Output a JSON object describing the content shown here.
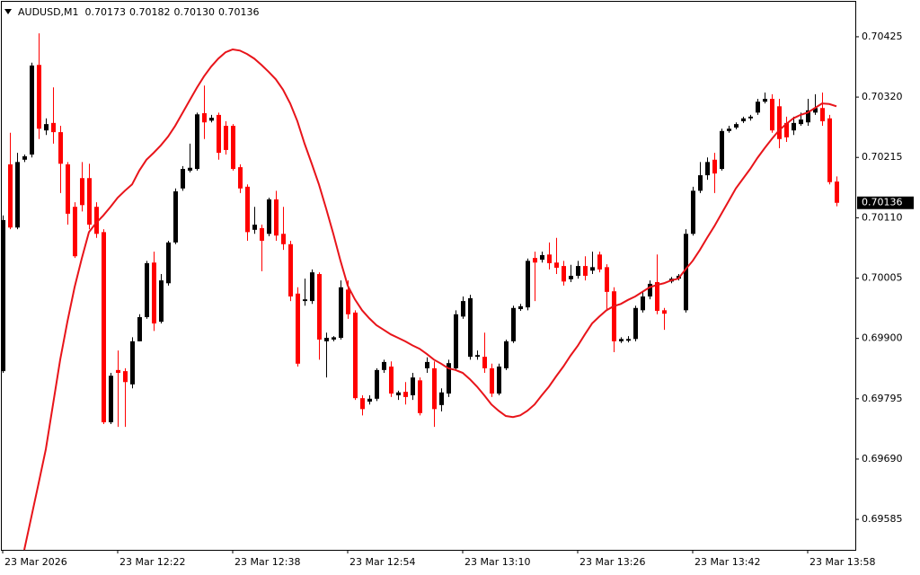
{
  "chart_data": {
    "type": "candlestick",
    "title": "AUDUSD,M1",
    "header_values": [
      "0.70173",
      "0.70182",
      "0.70130",
      "0.70136"
    ],
    "up_color": "#000000",
    "down_color": "#ff0000",
    "ylim": [
      0.69532,
      0.70489
    ],
    "yticks": [
      0.70425,
      {
        "value": 0.7032,
        "label": "0.70320"
      },
      0.70215,
      {
        "value": 0.7011,
        "label": "0.70110"
      },
      0.70005,
      {
        "value": 0.699,
        "label": "0.69900"
      },
      0.69795,
      {
        "value": 0.6969,
        "label": "0.69690"
      },
      0.69585
    ],
    "categories": [
      "23 Mar 2026",
      null,
      null,
      null,
      null,
      null,
      null,
      null,
      null,
      null,
      null,
      null,
      null,
      null,
      null,
      null,
      "23 Mar 12:22",
      null,
      null,
      null,
      null,
      null,
      null,
      null,
      null,
      null,
      null,
      null,
      null,
      null,
      null,
      null,
      "23 Mar 12:38",
      null,
      null,
      null,
      null,
      null,
      null,
      null,
      null,
      null,
      null,
      null,
      null,
      null,
      null,
      null,
      "23 Mar 12:54",
      null,
      null,
      null,
      null,
      null,
      null,
      null,
      null,
      null,
      null,
      null,
      null,
      null,
      null,
      null,
      "23 Mar 13:10",
      null,
      null,
      null,
      null,
      null,
      null,
      null,
      null,
      null,
      null,
      null,
      null,
      null,
      null,
      null,
      "23 Mar 13:26",
      null,
      null,
      null,
      null,
      null,
      null,
      null,
      null,
      null,
      null,
      null,
      null,
      null,
      null,
      null,
      "23 Mar 13:42",
      null,
      null,
      null,
      null,
      null,
      null,
      null,
      null,
      null,
      null,
      null,
      null,
      null,
      null,
      null,
      "23 Mar 13:58",
      null,
      null,
      null,
      null
    ],
    "ohlc": [
      [
        0.69843,
        0.70114,
        0.6984,
        0.70106
      ],
      [
        0.70203,
        0.70258,
        0.7009,
        0.70093
      ],
      [
        0.70093,
        0.70223,
        0.7009,
        0.70207
      ],
      [
        0.70211,
        0.7022,
        0.70207,
        0.70217
      ],
      [
        0.7022,
        0.7038,
        0.70215,
        0.70375
      ],
      [
        0.70376,
        0.70431,
        0.70247,
        0.70265
      ],
      [
        0.70262,
        0.70283,
        0.70254,
        0.70273
      ],
      [
        0.70275,
        0.70337,
        0.70239,
        0.70259
      ],
      [
        0.70259,
        0.7027,
        0.70153,
        0.70204
      ],
      [
        0.70203,
        0.70207,
        0.70098,
        0.70117
      ],
      [
        0.70129,
        0.70137,
        0.7004,
        0.70043
      ],
      [
        0.70179,
        0.70207,
        0.70121,
        0.70132
      ],
      [
        0.70179,
        0.70204,
        0.7009,
        0.70098
      ],
      [
        0.70129,
        0.70137,
        0.70075,
        0.70082
      ],
      [
        0.70085,
        0.7009,
        0.69751,
        0.69754
      ],
      [
        0.69754,
        0.6984,
        0.69751,
        0.69835
      ],
      [
        0.69845,
        0.69879,
        0.69746,
        0.6984
      ],
      [
        0.69843,
        0.69848,
        0.69746,
        0.69824
      ],
      [
        0.6982,
        0.69902,
        0.69813,
        0.69895
      ],
      [
        0.69895,
        0.69942,
        0.69895,
        0.69937
      ],
      [
        0.69937,
        0.70035,
        0.69934,
        0.70031
      ],
      [
        0.70032,
        0.70051,
        0.69913,
        0.69926
      ],
      [
        0.69929,
        0.70012,
        0.69926,
        0.70001
      ],
      [
        0.69996,
        0.7007,
        0.69992,
        0.70067
      ],
      [
        0.70067,
        0.70161,
        0.70064,
        0.70156
      ],
      [
        0.70161,
        0.702,
        0.70157,
        0.70195
      ],
      [
        0.70192,
        0.70239,
        0.70189,
        0.70197
      ],
      [
        0.70195,
        0.70293,
        0.70192,
        0.7029
      ],
      [
        0.70292,
        0.7034,
        0.70247,
        0.70276
      ],
      [
        0.70279,
        0.70289,
        0.70276,
        0.70284
      ],
      [
        0.70289,
        0.70293,
        0.70211,
        0.70223
      ],
      [
        0.7027,
        0.70278,
        0.7022,
        0.70228
      ],
      [
        0.7027,
        0.70273,
        0.70192,
        0.70195
      ],
      [
        0.70198,
        0.70203,
        0.70153,
        0.70161
      ],
      [
        0.70164,
        0.70168,
        0.7007,
        0.70085
      ],
      [
        0.70089,
        0.70129,
        0.70082,
        0.70098
      ],
      [
        0.70092,
        0.70098,
        0.70017,
        0.7007
      ],
      [
        0.70082,
        0.70145,
        0.70078,
        0.70142
      ],
      [
        0.70142,
        0.70157,
        0.7007,
        0.70079
      ],
      [
        0.70082,
        0.70129,
        0.70054,
        0.70064
      ],
      [
        0.70064,
        0.7007,
        0.69965,
        0.69973
      ],
      [
        0.69978,
        0.69989,
        0.69851,
        0.69856
      ],
      [
        0.69965,
        0.70004,
        0.69957,
        0.69968
      ],
      [
        0.69965,
        0.7002,
        0.6996,
        0.70015
      ],
      [
        0.70012,
        0.70015,
        0.69863,
        0.69898
      ],
      [
        0.69895,
        0.6991,
        0.69832,
        0.69901
      ],
      [
        0.69898,
        0.69904,
        0.69895,
        0.69902
      ],
      [
        0.69901,
        0.70001,
        0.69898,
        0.69989
      ],
      [
        0.69985,
        0.70001,
        0.69934,
        0.69942
      ],
      [
        0.69945,
        0.69949,
        0.69793,
        0.69796
      ],
      [
        0.69796,
        0.69801,
        0.69766,
        0.69777
      ],
      [
        0.6979,
        0.69801,
        0.69785,
        0.69795
      ],
      [
        0.69795,
        0.69848,
        0.69791,
        0.69845
      ],
      [
        0.69845,
        0.69863,
        0.6984,
        0.69859
      ],
      [
        0.69851,
        0.6986,
        0.69798,
        0.69804
      ],
      [
        0.69801,
        0.69809,
        0.69793,
        0.69806
      ],
      [
        0.69807,
        0.69824,
        0.69785,
        0.69798
      ],
      [
        0.69801,
        0.6984,
        0.69793,
        0.69832
      ],
      [
        0.69827,
        0.69832,
        0.69766,
        0.6977
      ],
      [
        0.69848,
        0.69867,
        0.6984,
        0.69859
      ],
      [
        0.69848,
        0.6986,
        0.69746,
        0.69777
      ],
      [
        0.69784,
        0.69813,
        0.69773,
        0.69806
      ],
      [
        0.69804,
        0.69863,
        0.69798,
        0.69857
      ],
      [
        0.69848,
        0.69949,
        0.69845,
        0.69942
      ],
      [
        0.69938,
        0.69973,
        0.69934,
        0.69965
      ],
      [
        0.69868,
        0.69976,
        0.69863,
        0.6997
      ],
      [
        0.69868,
        0.69879,
        0.69863,
        0.69871
      ],
      [
        0.69868,
        0.6991,
        0.6984,
        0.69848
      ],
      [
        0.69848,
        0.69856,
        0.69798,
        0.69804
      ],
      [
        0.69804,
        0.69856,
        0.69801,
        0.69851
      ],
      [
        0.69848,
        0.69898,
        0.69845,
        0.69895
      ],
      [
        0.69895,
        0.69957,
        0.69892,
        0.69953
      ],
      [
        0.69951,
        0.6996,
        0.69948,
        0.69956
      ],
      [
        0.69954,
        0.70039,
        0.69949,
        0.70035
      ],
      [
        0.7004,
        0.70051,
        0.69965,
        0.70032
      ],
      [
        0.70037,
        0.70051,
        0.70032,
        0.70045
      ],
      [
        0.70046,
        0.70067,
        0.7002,
        0.70031
      ],
      [
        0.70032,
        0.70075,
        0.70012,
        0.70023
      ],
      [
        0.70026,
        0.70035,
        0.69992,
        0.69999
      ],
      [
        0.70003,
        0.70028,
        0.69998,
        0.70009
      ],
      [
        0.70009,
        0.70035,
        0.70004,
        0.70026
      ],
      [
        0.70026,
        0.70043,
        0.70001,
        0.70009
      ],
      [
        0.70018,
        0.70051,
        0.70012,
        0.70024
      ],
      [
        0.70046,
        0.70051,
        0.70015,
        0.7002
      ],
      [
        0.70024,
        0.70029,
        0.69949,
        0.69981
      ],
      [
        0.69982,
        0.69989,
        0.69876,
        0.69895
      ],
      [
        0.69895,
        0.69902,
        0.69892,
        0.69899
      ],
      [
        0.69896,
        0.69904,
        0.69893,
        0.69899
      ],
      [
        0.69899,
        0.69957,
        0.69895,
        0.69953
      ],
      [
        0.69949,
        0.69981,
        0.69945,
        0.69973
      ],
      [
        0.69973,
        0.70001,
        0.69968,
        0.69995
      ],
      [
        0.69998,
        0.70046,
        0.69942,
        0.69948
      ],
      [
        0.69949,
        0.69953,
        0.69915,
        0.69943
      ],
      [
        0.69999,
        0.70007,
        0.69996,
        0.70004
      ],
      [
        0.70004,
        0.70012,
        0.70001,
        0.70009
      ],
      [
        0.69949,
        0.7009,
        0.69945,
        0.70082
      ],
      [
        0.70082,
        0.70164,
        0.70079,
        0.70157
      ],
      [
        0.70157,
        0.70207,
        0.70153,
        0.70184
      ],
      [
        0.70184,
        0.70215,
        0.70176,
        0.70207
      ],
      [
        0.70211,
        0.70223,
        0.70153,
        0.70187
      ],
      [
        0.70195,
        0.70265,
        0.70192,
        0.70261
      ],
      [
        0.70261,
        0.7027,
        0.70258,
        0.70265
      ],
      [
        0.70267,
        0.70276,
        0.70264,
        0.70273
      ],
      [
        0.70278,
        0.70286,
        0.70275,
        0.70283
      ],
      [
        0.70283,
        0.70289,
        0.70279,
        0.70286
      ],
      [
        0.70293,
        0.70317,
        0.70289,
        0.70312
      ],
      [
        0.70312,
        0.70328,
        0.70309,
        0.70317
      ],
      [
        0.70317,
        0.70325,
        0.70258,
        0.70262
      ],
      [
        0.70304,
        0.70317,
        0.70231,
        0.70247
      ],
      [
        0.70275,
        0.70286,
        0.70242,
        0.7025
      ],
      [
        0.70262,
        0.70286,
        0.70254,
        0.70275
      ],
      [
        0.70273,
        0.70293,
        0.7027,
        0.70281
      ],
      [
        0.70276,
        0.70317,
        0.7027,
        0.70297
      ],
      [
        0.70293,
        0.70325,
        0.70289,
        0.70301
      ],
      [
        0.70301,
        0.70328,
        0.7027,
        0.70278
      ],
      [
        0.70283,
        0.70289,
        0.70168,
        0.70172
      ],
      [
        0.70173,
        0.70182,
        0.7013,
        0.70136
      ]
    ],
    "ma": {
      "color": "#e8141a",
      "values": [
        null,
        null,
        null,
        0.69532,
        0.6959,
        0.69648,
        0.69707,
        0.69785,
        0.69863,
        0.69929,
        0.69989,
        0.70039,
        0.70085,
        0.70101,
        0.70114,
        0.70129,
        0.70145,
        0.70157,
        0.70168,
        0.70192,
        0.70211,
        0.70223,
        0.70236,
        0.70251,
        0.7027,
        0.70292,
        0.70314,
        0.70336,
        0.70356,
        0.70373,
        0.70387,
        0.70398,
        0.70403,
        0.70401,
        0.70395,
        0.70387,
        0.70376,
        0.70364,
        0.70351,
        0.70333,
        0.70309,
        0.70278,
        0.70239,
        0.70204,
        0.70168,
        0.70126,
        0.70082,
        0.70035,
        0.69992,
        0.69968,
        0.69949,
        0.69935,
        0.69923,
        0.69915,
        0.69907,
        0.69901,
        0.69895,
        0.69888,
        0.69882,
        0.69873,
        0.69863,
        0.69856,
        0.69848,
        0.69845,
        0.6984,
        0.69829,
        0.69816,
        0.69801,
        0.69785,
        0.69774,
        0.69765,
        0.69763,
        0.69766,
        0.69774,
        0.69785,
        0.69801,
        0.69816,
        0.69834,
        0.69851,
        0.6987,
        0.69887,
        0.69907,
        0.69926,
        0.69938,
        0.69949,
        0.69956,
        0.6996,
        0.69967,
        0.69973,
        0.69981,
        0.69989,
        0.69993,
        0.69996,
        0.70001,
        0.70004,
        0.7002,
        0.70035,
        0.70054,
        0.70075,
        0.70095,
        0.70117,
        0.70139,
        0.70161,
        0.70178,
        0.70195,
        0.70214,
        0.70231,
        0.70247,
        0.70262,
        0.70273,
        0.70283,
        0.70289,
        0.70293,
        0.70301,
        0.70309,
        0.70308,
        0.70304
      ]
    }
  }
}
